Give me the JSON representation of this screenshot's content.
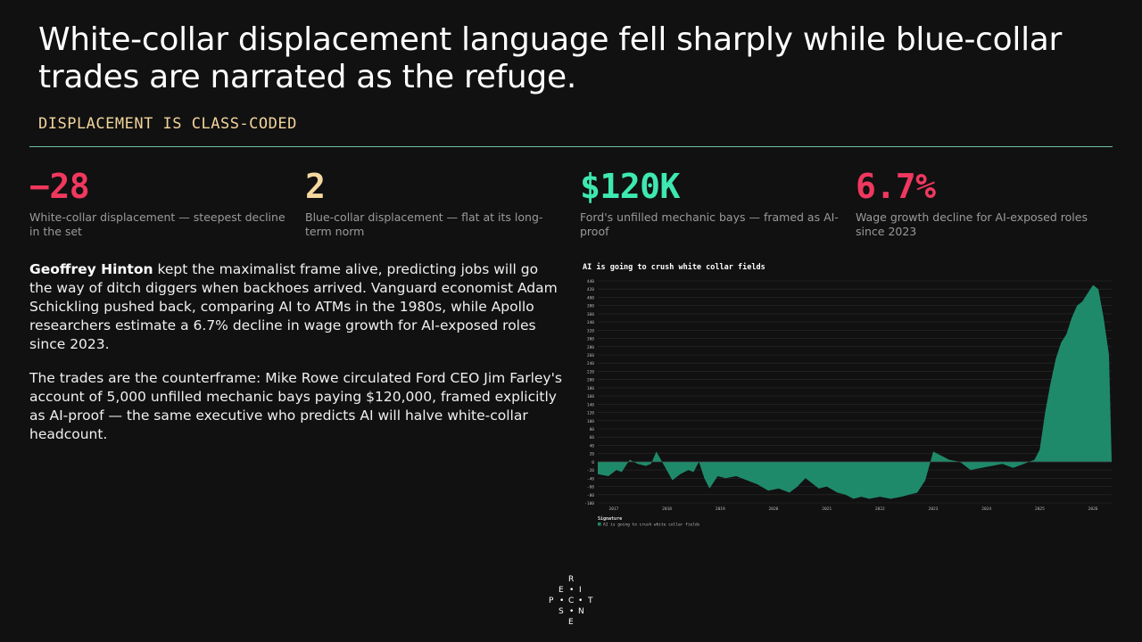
{
  "header": {
    "title": "White-collar displacement language fell sharply while blue-collar trades are narrated as the refuge.",
    "kicker": "DISPLACEMENT IS CLASS-CODED"
  },
  "stats": [
    {
      "value": "−28",
      "label": "White-collar displacement — steepest decline in the set",
      "color": "#f0385f"
    },
    {
      "value": "2",
      "label": "Blue-collar displacement — flat at its long-term norm",
      "color": "#f5d8a0"
    },
    {
      "value": "$120K",
      "label": "Ford's unfilled mechanic bays — framed as AI-proof",
      "color": "#3ee8b0"
    },
    {
      "value": "6.7%",
      "label": "Wage growth decline for AI-exposed roles since 2023",
      "color": "#f0385f"
    }
  ],
  "body": {
    "p1_name": "Geoffrey Hinton",
    "p1_rest": " kept the maximalist frame alive, predicting jobs will go the way of ditch diggers when backhoes arrived. Vanguard economist Adam Schickling pushed back, comparing AI to ATMs in the 1980s, while Apollo researchers estimate a 6.7% decline in wage growth for AI-exposed roles since 2023.",
    "p2": "The trades are the counterframe: Mike Rowe circulated Ford CEO Jim Farley's account of 5,000 unfilled mechanic bays paying $120,000, framed explicitly as AI-proof — the same executive who predicts AI will halve white-collar headcount."
  },
  "logo": {
    "letters": [
      "R",
      "E",
      "I",
      "P",
      "C",
      "T",
      "S",
      "N",
      "E"
    ]
  },
  "chart_data": {
    "type": "area",
    "title": "AI is going to crush white collar fields",
    "legend_title": "Signature",
    "legend_placement": "bottom-left",
    "grid": true,
    "ylim": [
      -100,
      440
    ],
    "y_ticks": [
      -100,
      -80,
      -60,
      -40,
      -20,
      0,
      20,
      40,
      60,
      80,
      100,
      120,
      140,
      160,
      180,
      200,
      220,
      240,
      260,
      280,
      300,
      320,
      340,
      360,
      380,
      400,
      420,
      440
    ],
    "x_ticks": [
      "2017",
      "2018",
      "2019",
      "2020",
      "2021",
      "2022",
      "2023",
      "2024",
      "2025",
      "2026"
    ],
    "xlim": [
      2017.0,
      2026.65
    ],
    "color": "#1f8a6a",
    "series": [
      {
        "name": "AI is going to crush white collar fields",
        "x": [
          2017.0,
          2017.2,
          2017.35,
          2017.45,
          2017.6,
          2017.75,
          2017.9,
          2018.0,
          2018.1,
          2018.25,
          2018.4,
          2018.55,
          2018.7,
          2018.8,
          2018.9,
          2019.0,
          2019.1,
          2019.25,
          2019.4,
          2019.6,
          2019.8,
          2020.0,
          2020.2,
          2020.4,
          2020.6,
          2020.75,
          2020.9,
          2021.0,
          2021.15,
          2021.3,
          2021.5,
          2021.65,
          2021.8,
          2021.95,
          2022.1,
          2022.3,
          2022.5,
          2022.7,
          2022.85,
          2023.0,
          2023.15,
          2023.3,
          2023.45,
          2023.6,
          2023.8,
          2024.0,
          2024.2,
          2024.4,
          2024.6,
          2024.8,
          2025.0,
          2025.1,
          2025.2,
          2025.3,
          2025.4,
          2025.5,
          2025.6,
          2025.7,
          2025.8,
          2025.9,
          2026.0,
          2026.1,
          2026.2,
          2026.3,
          2026.4,
          2026.5,
          2026.6,
          2026.65
        ],
        "y": [
          -30,
          -35,
          -20,
          -25,
          5,
          -5,
          -10,
          -5,
          25,
          -10,
          -45,
          -30,
          -20,
          -25,
          0,
          -40,
          -65,
          -35,
          -40,
          -35,
          -45,
          -55,
          -70,
          -65,
          -75,
          -60,
          -40,
          -50,
          -65,
          -60,
          -75,
          -80,
          -90,
          -85,
          -90,
          -85,
          -90,
          -85,
          -80,
          -75,
          -45,
          25,
          15,
          5,
          0,
          -20,
          -15,
          -10,
          -5,
          -15,
          -5,
          0,
          5,
          30,
          120,
          190,
          250,
          290,
          310,
          350,
          380,
          390,
          410,
          430,
          420,
          350,
          260,
          0
        ]
      }
    ]
  }
}
